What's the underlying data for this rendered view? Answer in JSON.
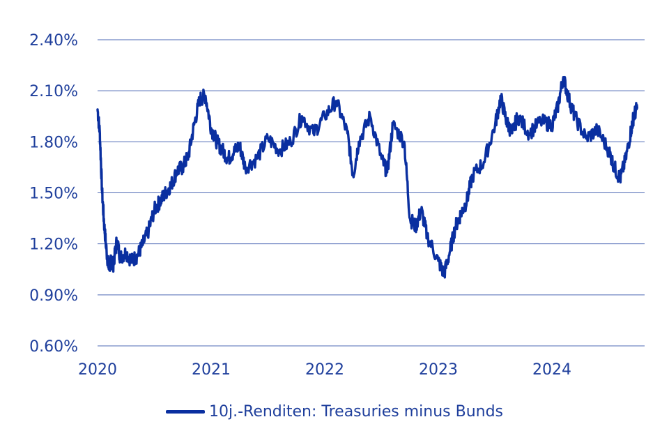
{
  "chart_data": {
    "type": "line",
    "x_tick_labels": [
      "2020",
      "2021",
      "2022",
      "2023",
      "2024"
    ],
    "y_tick_labels": [
      "2.40%",
      "2.10%",
      "1.80%",
      "1.50%",
      "1.20%",
      "0.90%",
      "0.60%"
    ],
    "ylim": [
      0.6,
      2.4
    ],
    "xlim": [
      2020.0,
      2024.75
    ],
    "grid": true,
    "legend_position": "bottom-center",
    "series": [
      {
        "name": "10j.-Renditen: Treasuries minus Bunds",
        "color": "#0a2fa0",
        "x": [
          2020.0,
          2020.02,
          2020.04,
          2020.06,
          2020.08,
          2020.1,
          2020.12,
          2020.14,
          2020.17,
          2020.2,
          2020.25,
          2020.3,
          2020.35,
          2020.4,
          2020.45,
          2020.5,
          2020.55,
          2020.6,
          2020.65,
          2020.7,
          2020.75,
          2020.8,
          2020.85,
          2020.9,
          2020.95,
          2021.0,
          2021.05,
          2021.1,
          2021.15,
          2021.2,
          2021.25,
          2021.3,
          2021.4,
          2021.5,
          2021.6,
          2021.7,
          2021.8,
          2021.9,
          2022.0,
          2022.1,
          2022.2,
          2022.25,
          2022.3,
          2022.4,
          2022.5,
          2022.55,
          2022.6,
          2022.7,
          2022.75,
          2022.8,
          2022.85,
          2022.9,
          2023.0,
          2023.05,
          2023.1,
          2023.15,
          2023.2,
          2023.25,
          2023.3,
          2023.4,
          2023.5,
          2023.55,
          2023.6,
          2023.65,
          2023.7,
          2023.8,
          2023.9,
          2024.0,
          2024.05,
          2024.1,
          2024.15,
          2024.2,
          2024.3,
          2024.4,
          2024.5,
          2024.55,
          2024.6,
          2024.65,
          2024.7,
          2024.72,
          2024.75
        ],
        "values": [
          1.99,
          1.85,
          1.5,
          1.3,
          1.15,
          1.05,
          1.1,
          1.08,
          1.22,
          1.12,
          1.15,
          1.1,
          1.13,
          1.2,
          1.28,
          1.4,
          1.45,
          1.5,
          1.55,
          1.63,
          1.65,
          1.72,
          1.9,
          2.05,
          2.07,
          1.88,
          1.8,
          1.75,
          1.7,
          1.74,
          1.78,
          1.65,
          1.7,
          1.82,
          1.75,
          1.8,
          1.95,
          1.85,
          1.95,
          2.04,
          1.85,
          1.6,
          1.8,
          1.95,
          1.7,
          1.62,
          1.9,
          1.8,
          1.35,
          1.3,
          1.4,
          1.25,
          1.1,
          1.02,
          1.15,
          1.3,
          1.38,
          1.45,
          1.6,
          1.68,
          1.9,
          2.06,
          1.92,
          1.85,
          1.95,
          1.85,
          1.92,
          1.9,
          2.0,
          2.18,
          2.05,
          1.95,
          1.82,
          1.87,
          1.75,
          1.65,
          1.58,
          1.7,
          1.88,
          1.95,
          2.0
        ]
      }
    ]
  }
}
